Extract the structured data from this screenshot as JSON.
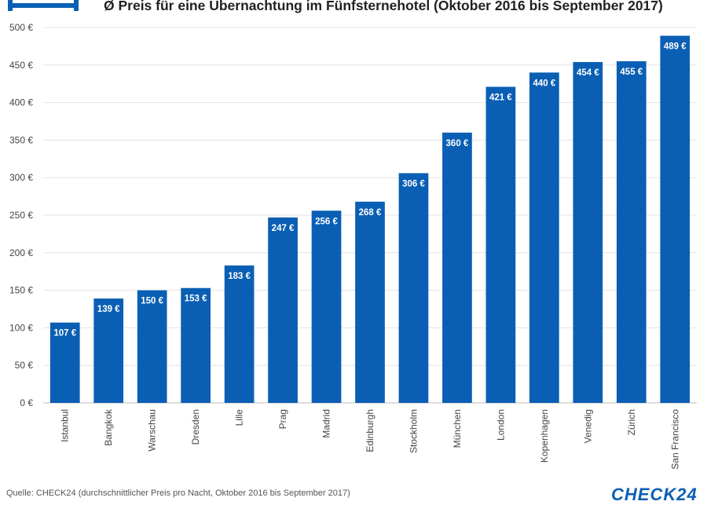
{
  "header": {
    "title": "Ø Preis für eine Übernachtung im Fünfsternehotel (Oktober 2016 bis September 2017)",
    "icon": "bed-icon"
  },
  "chart_data": {
    "type": "bar",
    "title": "Ø Preis für eine Übernachtung im Fünfsternehotel (Oktober 2016 bis September 2017)",
    "xlabel": "",
    "ylabel": "",
    "ylim": [
      0,
      500
    ],
    "yticks": [
      0,
      50,
      100,
      150,
      200,
      250,
      300,
      350,
      400,
      450,
      500
    ],
    "ytick_labels": [
      "0 €",
      "50 €",
      "100 €",
      "150 €",
      "200 €",
      "250 €",
      "300 €",
      "350 €",
      "400 €",
      "450 €",
      "500 €"
    ],
    "grid": true,
    "bar_color": "#0a5fb4",
    "categories": [
      "Istanbul",
      "Bangkok",
      "Warschau",
      "Dresden",
      "Lille",
      "Prag",
      "Madrid",
      "Edinburgh",
      "Stockholm",
      "München",
      "London",
      "Kopenhagen",
      "Venedig",
      "Zürich",
      "San Francisco"
    ],
    "values": [
      107,
      139,
      150,
      153,
      183,
      247,
      256,
      268,
      306,
      360,
      421,
      440,
      454,
      455,
      489
    ],
    "value_labels": [
      "107 €",
      "139 €",
      "150 €",
      "153 €",
      "183 €",
      "247 €",
      "256 €",
      "268 €",
      "306 €",
      "360 €",
      "421 €",
      "440 €",
      "454 €",
      "455 €",
      "489 €"
    ]
  },
  "footer": {
    "source": "Quelle: CHECK24 (durchschnittlicher Preis pro Nacht, Oktober 2016 bis September 2017)",
    "logo": "CHECK24"
  }
}
